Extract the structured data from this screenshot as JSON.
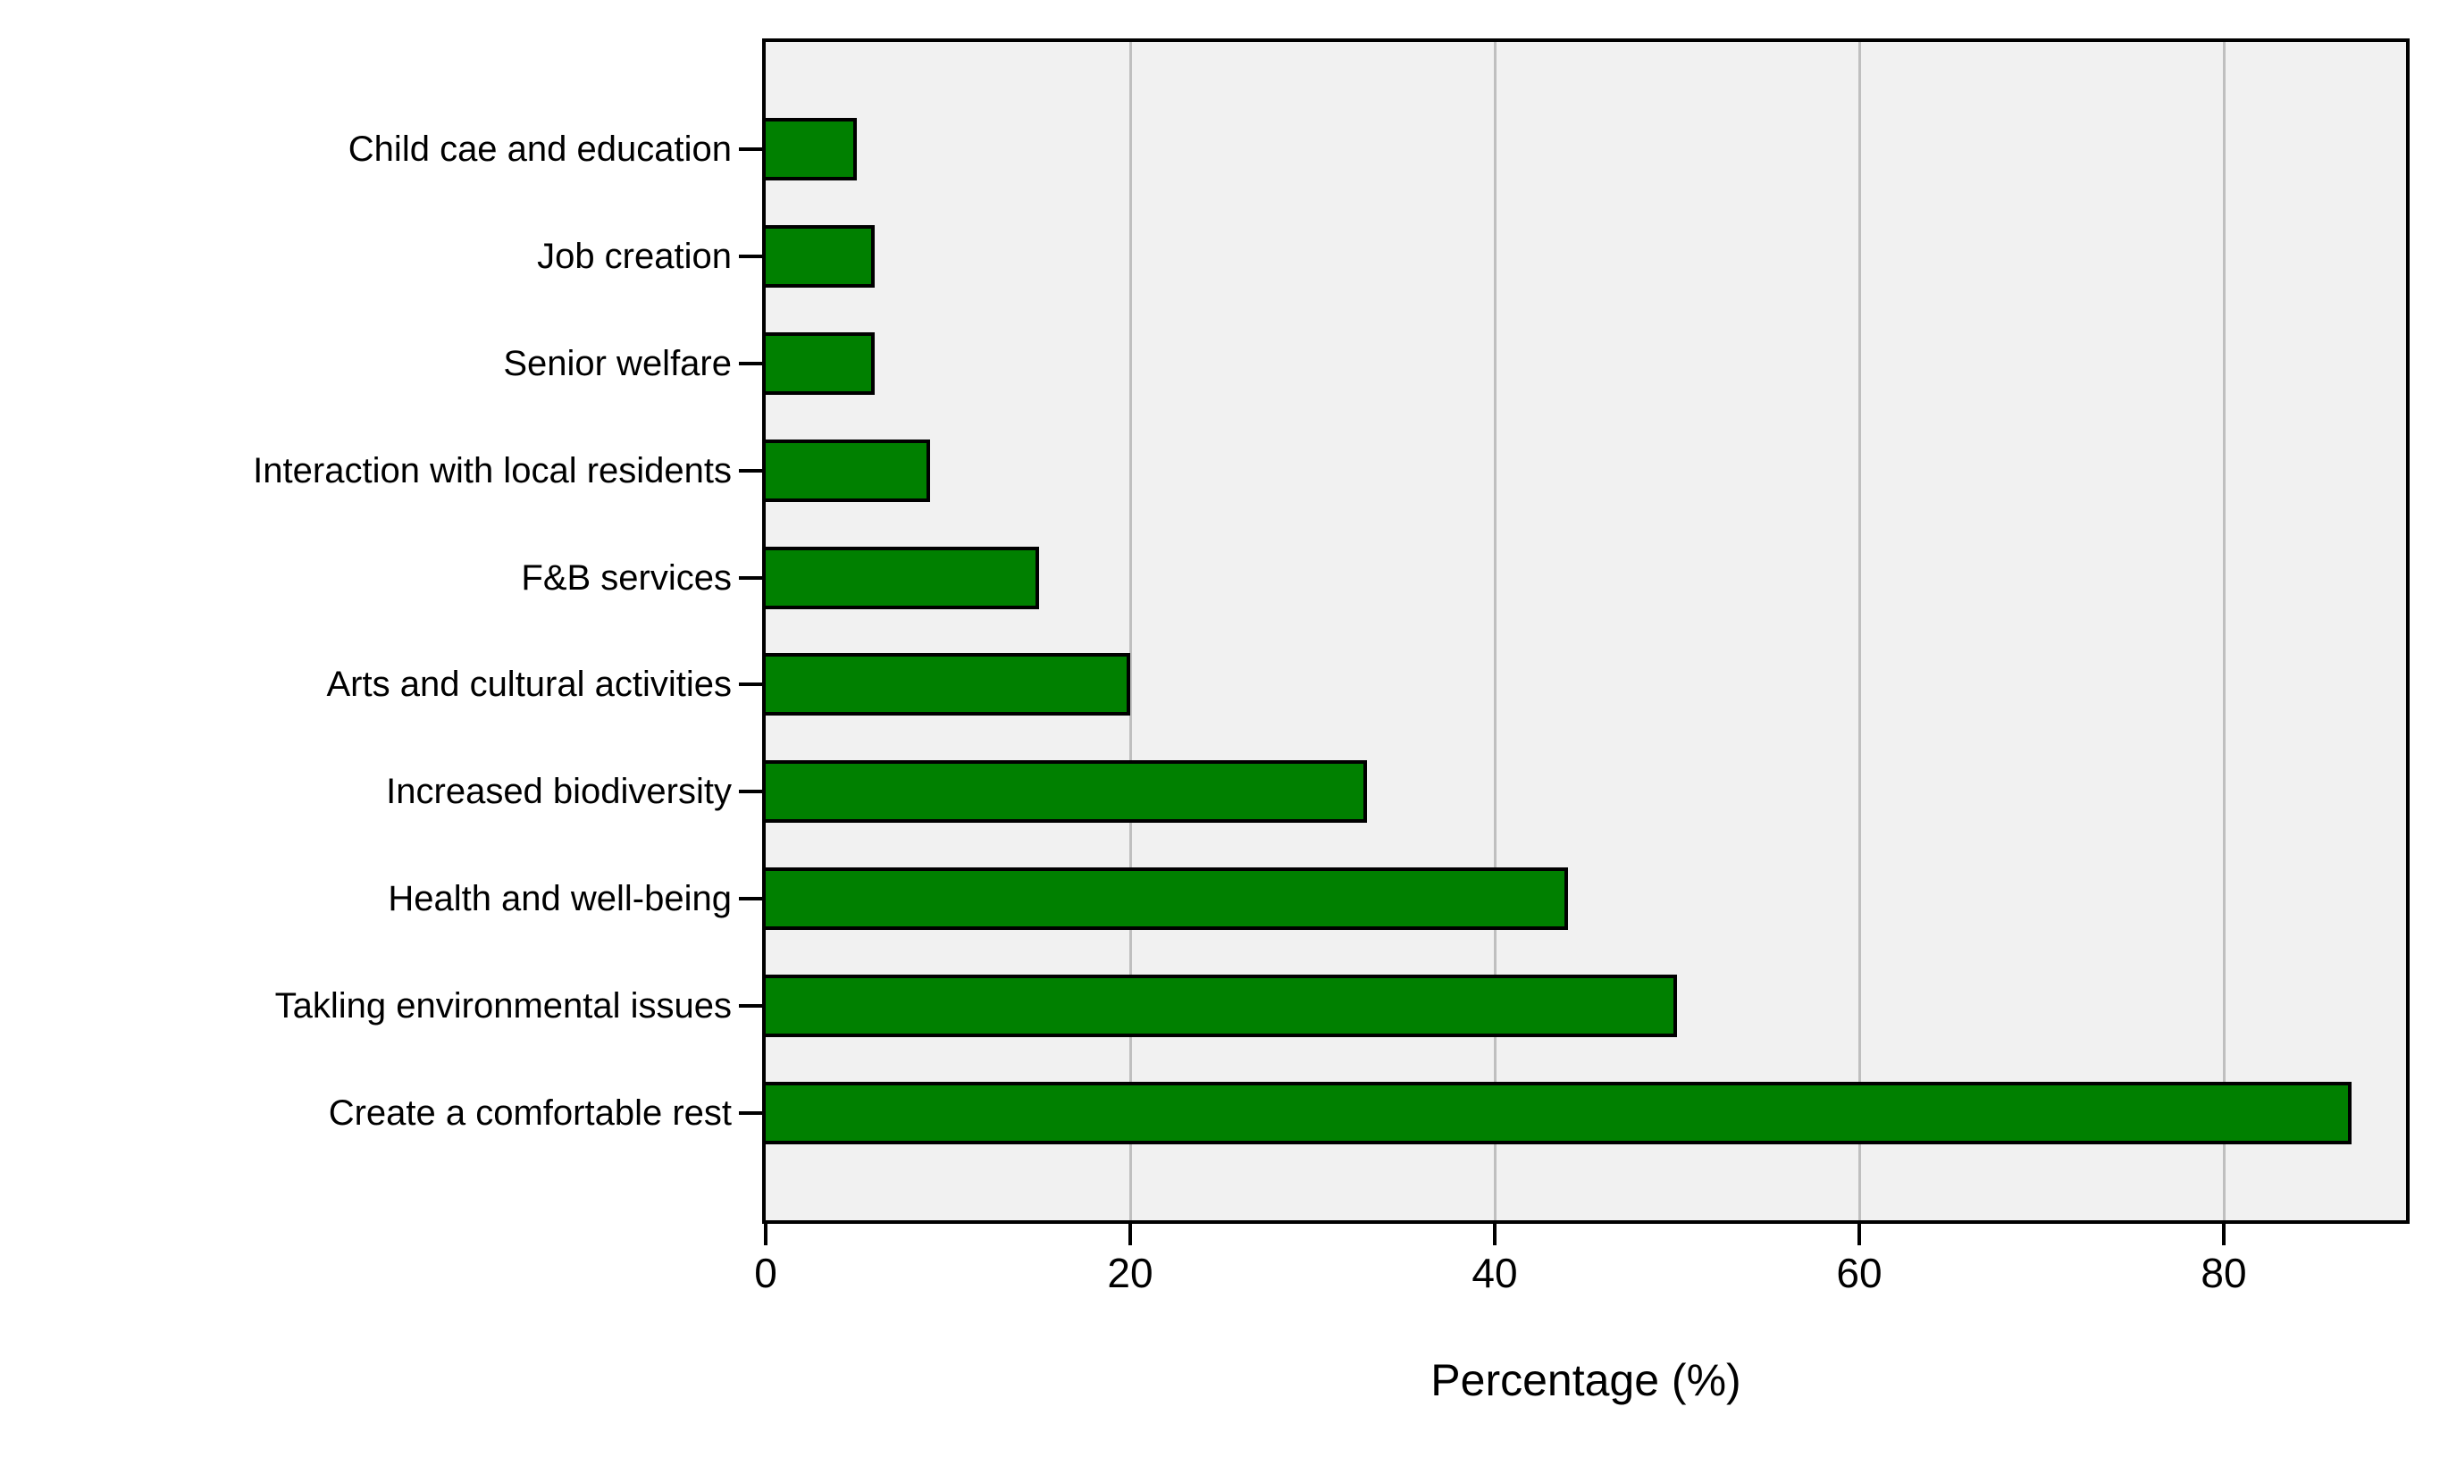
{
  "chart_data": {
    "type": "bar",
    "orientation": "horizontal",
    "title": "",
    "categories": [
      "Child cae and education",
      "Job creation",
      "Senior welfare",
      "Interaction with local residents",
      "F&B services",
      "Arts and cultural activities",
      "Increased biodiversity",
      "Health and well-being",
      "Takling environmental issues",
      "Create a comfortable rest"
    ],
    "values": [
      5,
      6,
      6,
      9,
      15,
      20,
      33,
      44,
      50,
      87
    ],
    "xlabel": "Percentage (%)",
    "xticks": [
      0,
      20,
      40,
      60,
      80
    ],
    "xlim": [
      0,
      90
    ],
    "grid": true,
    "legend": "none",
    "bar_color": "#008000",
    "bar_border_color": "#000000",
    "plot_background": "#f1f1f1",
    "gridline_color": "#bfbfbf",
    "frame_color": "#000000"
  }
}
